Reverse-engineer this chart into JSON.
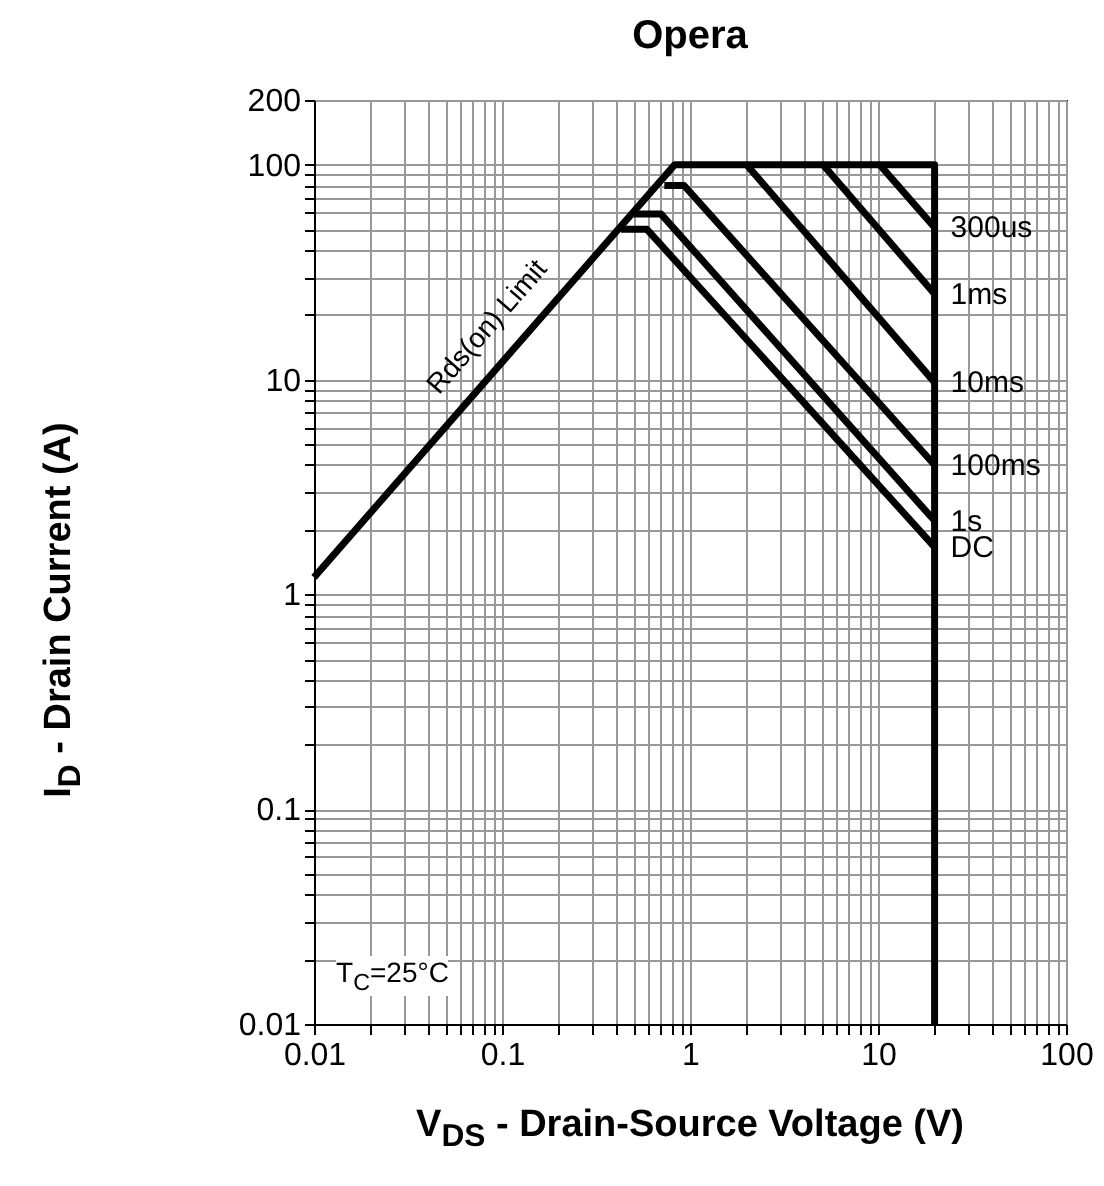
{
  "chart_data": {
    "type": "line",
    "title": "Opera",
    "xlabel": "V$_{DS}$ - Drain-Source Voltage (V)",
    "ylabel": "I$_{D}$ - Drain Current (A)",
    "log": "xy",
    "xlim": [
      0.01,
      100
    ],
    "ylim": [
      0.01,
      200
    ],
    "xticks": [
      0.01,
      0.1,
      1,
      10,
      100
    ],
    "yticks": [
      0.01,
      0.1,
      1,
      10,
      100,
      200
    ],
    "grid": true,
    "legend": false,
    "line_style": "solid",
    "marker": "none",
    "series": [
      {
        "color": "#000000",
        "x": [
          0.01,
          0.83,
          20,
          20
        ],
        "values": [
          1.2,
          100,
          100,
          0.01
        ]
      },
      {
        "name": "300us",
        "color": "#000000",
        "x": [
          10.2,
          20
        ],
        "values": [
          100,
          51
        ]
      },
      {
        "name": "1ms",
        "color": "#000000",
        "x": [
          5.1,
          20
        ],
        "values": [
          100,
          25
        ]
      },
      {
        "name": "10ms",
        "color": "#000000",
        "x": [
          2.0,
          20
        ],
        "values": [
          100,
          9.7
        ]
      },
      {
        "name": "100ms",
        "color": "#000000",
        "x": [
          0.73,
          0.93,
          20
        ],
        "values": [
          80,
          80,
          4.0
        ]
      },
      {
        "name": "1s",
        "color": "#000000",
        "x": [
          0.5,
          0.7,
          20
        ],
        "values": [
          59,
          59,
          2.2
        ]
      },
      {
        "name": "DC",
        "color": "#000000",
        "x": [
          0.43,
          0.59,
          20
        ],
        "values": [
          50,
          50,
          1.66
        ]
      }
    ],
    "annotations": [
      "Rds(on) Limit",
      "T$_{C}$=25°C"
    ]
  }
}
